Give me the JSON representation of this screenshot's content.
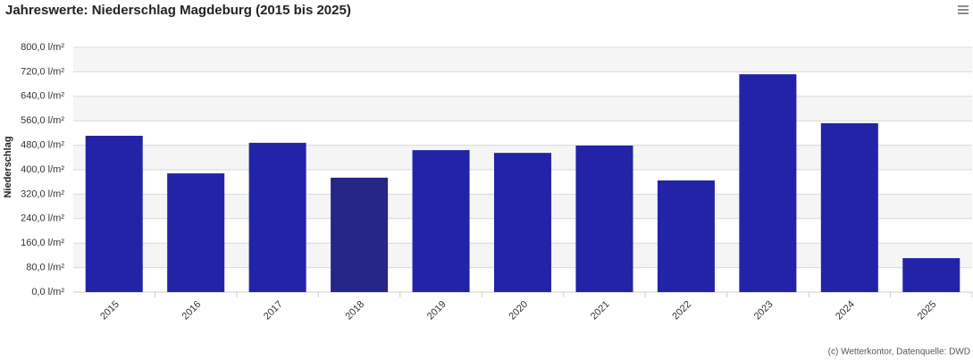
{
  "chart_data": {
    "type": "bar",
    "title": "Jahreswerte: Niederschlag Magdeburg (2015 bis 2025)",
    "y_label": "Niederschlag",
    "credit": "(c) Wetterkontor, Datenquelle: DWD",
    "categories": [
      "2015",
      "2016",
      "2017",
      "2018",
      "2019",
      "2020",
      "2021",
      "2022",
      "2023",
      "2024",
      "2025"
    ],
    "values": [
      511,
      388,
      488,
      374,
      464,
      455,
      479,
      365,
      712,
      552,
      111
    ],
    "colors": [
      "#2323a8",
      "#2323a8",
      "#2323a8",
      "#262686",
      "#2323a8",
      "#2323a8",
      "#2323a8",
      "#2323a8",
      "#2323a8",
      "#2323a8",
      "#2323a8"
    ],
    "ylim": [
      0,
      800
    ],
    "yticks": [
      {
        "value": 0,
        "label": "0,0 l/m²"
      },
      {
        "value": 80,
        "label": "80,0 l/m²"
      },
      {
        "value": 160,
        "label": "160,0 l/m²"
      },
      {
        "value": 240,
        "label": "240,0 l/m²"
      },
      {
        "value": 320,
        "label": "320,0 l/m²"
      },
      {
        "value": 400,
        "label": "400,0 l/m²"
      },
      {
        "value": 480,
        "label": "480,0 l/m²"
      },
      {
        "value": 560,
        "label": "560,0 l/m²"
      },
      {
        "value": 640,
        "label": "640,0 l/m²"
      },
      {
        "value": 720,
        "label": "720,0 l/m²"
      },
      {
        "value": 800,
        "label": "800,0 l/m²"
      }
    ],
    "grid": true
  }
}
